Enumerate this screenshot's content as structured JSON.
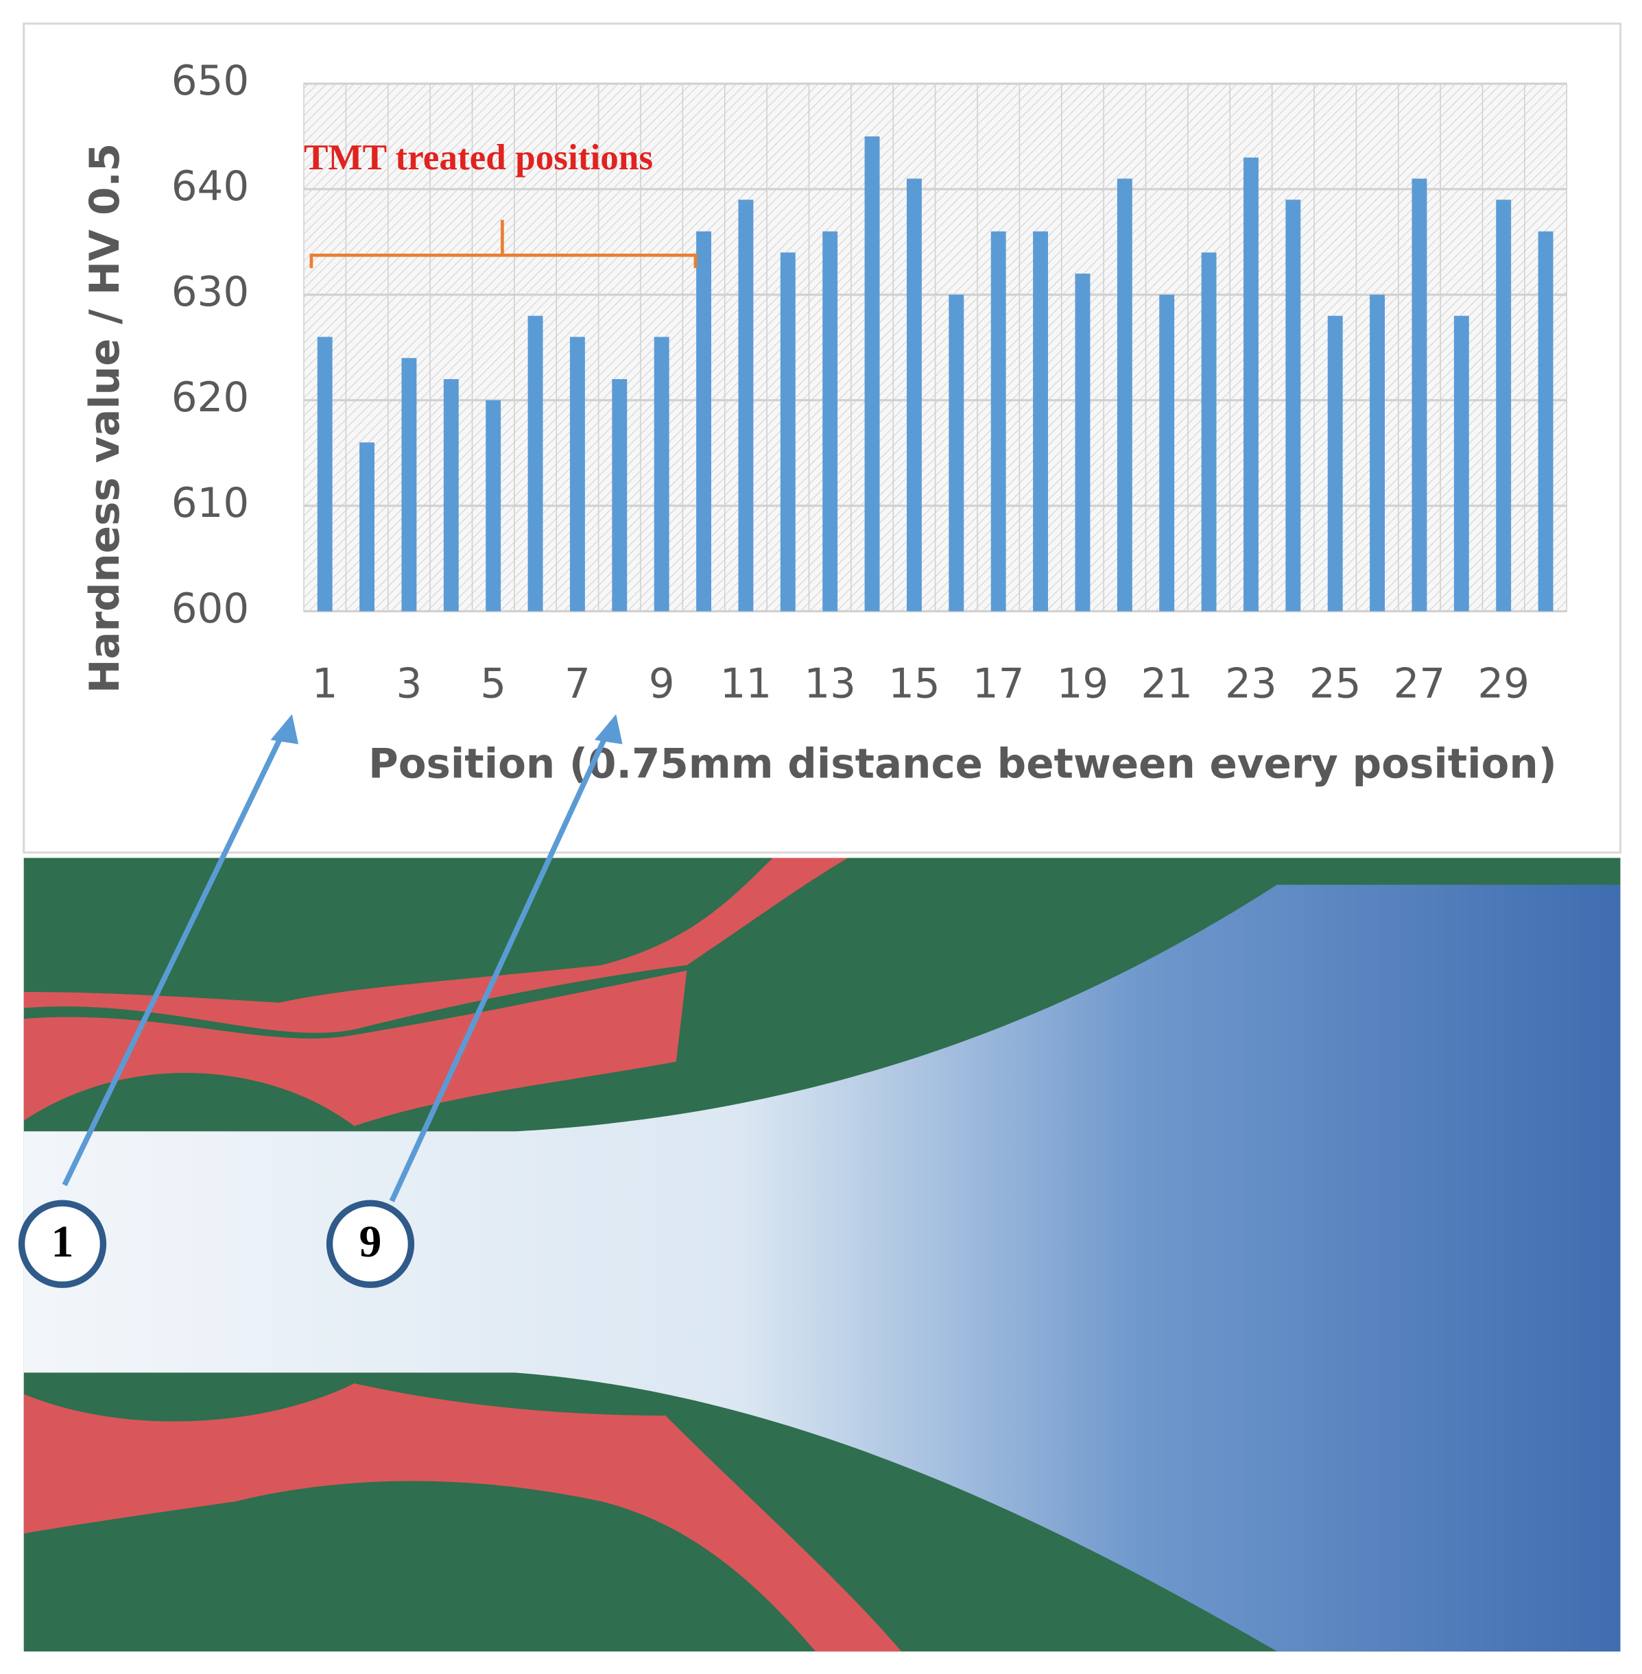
{
  "chart_data": {
    "type": "bar",
    "ylabel": "Hardness value / HV 0.5",
    "xlabel": "Position (0.75mm distance between every position)",
    "annotation": "TMT treated positions",
    "categories": [
      "1",
      null,
      "3",
      null,
      "5",
      null,
      "7",
      null,
      "9",
      null,
      "11",
      null,
      "13",
      null,
      "15",
      null,
      "17",
      null,
      "19",
      null,
      "21",
      null,
      "23",
      null,
      "25",
      null,
      "27",
      null,
      "29",
      null
    ],
    "values": [
      626,
      616,
      624,
      622,
      620,
      628,
      626,
      622,
      626,
      636,
      639,
      634,
      636,
      645,
      641,
      630,
      636,
      636,
      632,
      641,
      630,
      634,
      643,
      639,
      628,
      630,
      641,
      628,
      639,
      636
    ],
    "color": "#5b9bd5",
    "ylim": [
      600,
      650
    ],
    "yticks": [
      600,
      610,
      620,
      630,
      640,
      650
    ],
    "grid": true
  },
  "photo": {
    "markers": [
      "1",
      "9"
    ]
  }
}
